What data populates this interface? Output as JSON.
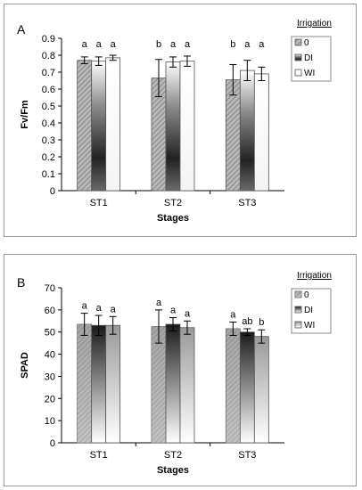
{
  "chart_data": [
    {
      "type": "bar",
      "panel_label": "A",
      "categories": [
        "ST1",
        "ST2",
        "ST3"
      ],
      "xlabel": "Stages",
      "ylabel": "Fv/Fm",
      "ylim": [
        0,
        0.9
      ],
      "yticks": [
        0,
        0.1,
        0.2,
        0.3,
        0.4,
        0.5,
        0.6,
        0.7,
        0.8,
        0.9
      ],
      "ytick_labels": [
        "0",
        "0.1",
        "0.2",
        "0.3",
        "0.4",
        "0.5",
        "0.6",
        "0.7",
        "0.8",
        "0.9"
      ],
      "legend_title": "Irrigation",
      "legend_position": "right",
      "grid": false,
      "series": [
        {
          "name": "0",
          "values": [
            0.77,
            0.665,
            0.655
          ],
          "errors": [
            0.02,
            0.11,
            0.09
          ],
          "letters": [
            "a",
            "b",
            "b"
          ]
        },
        {
          "name": "DI",
          "values": [
            0.765,
            0.76,
            0.71
          ],
          "errors": [
            0.025,
            0.03,
            0.06
          ],
          "letters": [
            "a",
            "a",
            "a"
          ]
        },
        {
          "name": "WI",
          "values": [
            0.785,
            0.765,
            0.69
          ],
          "errors": [
            0.015,
            0.03,
            0.04
          ],
          "letters": [
            "a",
            "a",
            "a"
          ]
        }
      ]
    },
    {
      "type": "bar",
      "panel_label": "B",
      "categories": [
        "ST1",
        "ST2",
        "ST3"
      ],
      "xlabel": "Stages",
      "ylabel": "SPAD",
      "ylim": [
        0,
        70
      ],
      "yticks": [
        0,
        10,
        20,
        30,
        40,
        50,
        60,
        70
      ],
      "ytick_labels": [
        "0",
        "10",
        "20",
        "30",
        "40",
        "50",
        "60",
        "70"
      ],
      "legend_title": "Irrigation",
      "legend_position": "right",
      "grid": false,
      "series": [
        {
          "name": "0",
          "values": [
            53.5,
            52.5,
            51.5
          ],
          "errors": [
            5.0,
            7.5,
            3.0
          ],
          "letters": [
            "a",
            "a",
            "a"
          ]
        },
        {
          "name": "DI",
          "values": [
            53.0,
            53.5,
            50.0
          ],
          "errors": [
            4.5,
            3.0,
            1.5
          ],
          "letters": [
            "a",
            "a",
            "ab"
          ]
        },
        {
          "name": "WI",
          "values": [
            53.0,
            52.0,
            48.0
          ],
          "errors": [
            4.0,
            3.0,
            3.0
          ],
          "letters": [
            "a",
            "a",
            "b"
          ]
        }
      ]
    }
  ]
}
